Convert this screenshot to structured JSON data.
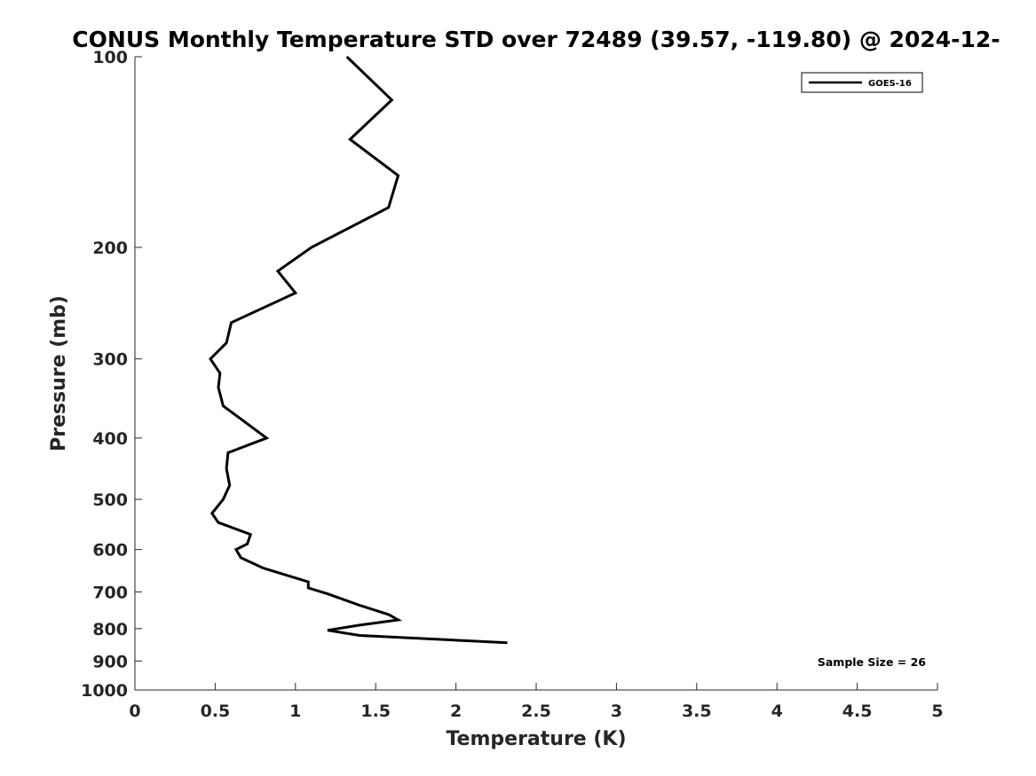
{
  "chart_data": {
    "type": "line",
    "title": "CONUS Monthly Temperature STD over 72489 (39.57, -119.80) @ 2024-12-",
    "xlabel": "Temperature (K)",
    "ylabel": "Pressure (mb)",
    "xlim": [
      0,
      5
    ],
    "ylim": [
      100,
      1000
    ],
    "y_scale": "log",
    "y_reversed": true,
    "x_ticks": [
      0,
      0.5,
      1,
      1.5,
      2,
      2.5,
      3,
      3.5,
      4,
      4.5,
      5
    ],
    "x_tick_labels": [
      "0",
      "0.5",
      "1",
      "1.5",
      "2",
      "2.5",
      "3",
      "3.5",
      "4",
      "4.5",
      "5"
    ],
    "y_ticks": [
      100,
      200,
      300,
      400,
      500,
      600,
      700,
      800,
      900,
      1000
    ],
    "y_tick_labels": [
      "100",
      "200",
      "300",
      "400",
      "500",
      "600",
      "700",
      "800",
      "900",
      "1000"
    ],
    "grid": false,
    "legend_position": "top-right",
    "series": [
      {
        "name": "GOES-16",
        "color": "#000000",
        "points": [
          {
            "x": 1.32,
            "y": 100
          },
          {
            "x": 1.6,
            "y": 117
          },
          {
            "x": 1.34,
            "y": 135
          },
          {
            "x": 1.64,
            "y": 154
          },
          {
            "x": 1.58,
            "y": 173
          },
          {
            "x": 1.1,
            "y": 200
          },
          {
            "x": 0.89,
            "y": 218
          },
          {
            "x": 1.0,
            "y": 236
          },
          {
            "x": 0.6,
            "y": 263
          },
          {
            "x": 0.57,
            "y": 283
          },
          {
            "x": 0.47,
            "y": 300
          },
          {
            "x": 0.53,
            "y": 316
          },
          {
            "x": 0.52,
            "y": 333
          },
          {
            "x": 0.55,
            "y": 356
          },
          {
            "x": 0.82,
            "y": 400
          },
          {
            "x": 0.58,
            "y": 422
          },
          {
            "x": 0.57,
            "y": 447
          },
          {
            "x": 0.59,
            "y": 475
          },
          {
            "x": 0.55,
            "y": 500
          },
          {
            "x": 0.48,
            "y": 526
          },
          {
            "x": 0.52,
            "y": 544
          },
          {
            "x": 0.72,
            "y": 568
          },
          {
            "x": 0.7,
            "y": 588
          },
          {
            "x": 0.63,
            "y": 600
          },
          {
            "x": 0.66,
            "y": 618
          },
          {
            "x": 0.8,
            "y": 642
          },
          {
            "x": 1.08,
            "y": 675
          },
          {
            "x": 1.08,
            "y": 690
          },
          {
            "x": 1.2,
            "y": 705
          },
          {
            "x": 1.4,
            "y": 735
          },
          {
            "x": 1.58,
            "y": 760
          },
          {
            "x": 1.64,
            "y": 775
          },
          {
            "x": 1.4,
            "y": 790
          },
          {
            "x": 1.2,
            "y": 805
          },
          {
            "x": 1.4,
            "y": 820
          },
          {
            "x": 2.32,
            "y": 842
          }
        ]
      }
    ],
    "annotations": [
      "Sample Size = 26"
    ]
  }
}
